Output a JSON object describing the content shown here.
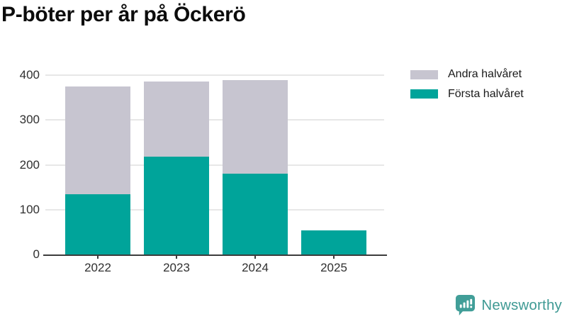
{
  "title": "P-böter per år på Öckerö",
  "chart_data": {
    "type": "bar",
    "stacked": true,
    "title": "P-böter per år på Öckerö",
    "xlabel": "",
    "ylabel": "",
    "categories": [
      "2022",
      "2023",
      "2024",
      "2025"
    ],
    "series": [
      {
        "name": "Första halvåret",
        "color": "#00A49A",
        "values": [
          135,
          218,
          180,
          54
        ]
      },
      {
        "name": "Andra halvåret",
        "color": "#C7C5D0",
        "values": [
          240,
          168,
          209,
          0
        ]
      }
    ],
    "totals": [
      375,
      386,
      389,
      54
    ],
    "ylim": [
      0,
      400
    ],
    "yticks": [
      0,
      100,
      200,
      300,
      400
    ],
    "grid": true,
    "legend": {
      "position": "top-right",
      "items": [
        {
          "label": "Andra halvåret",
          "color": "#C7C5D0"
        },
        {
          "label": "Första halvåret",
          "color": "#00A49A"
        }
      ]
    },
    "colors": {
      "axis": "#3C3C3C",
      "grid": "#E7E7E7",
      "tick_label": "#303030"
    }
  },
  "branding": {
    "label": "Newsworthy",
    "color": "#3F9A94",
    "icon_color": "#419E98"
  }
}
